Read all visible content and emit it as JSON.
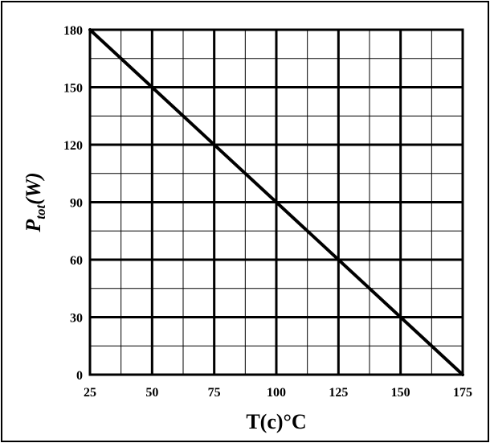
{
  "chart_data": {
    "type": "line",
    "title": "",
    "xlabel": "T(c)°C",
    "ylabel": {
      "main": "P",
      "sub": "tot",
      "unit": "(W)"
    },
    "xlim": [
      25,
      175
    ],
    "ylim": [
      0,
      180
    ],
    "x_ticks": [
      25,
      50,
      75,
      100,
      125,
      150,
      175
    ],
    "y_ticks": [
      0,
      30,
      60,
      90,
      120,
      150,
      180
    ],
    "x_minor_step": 12.5,
    "y_minor_step": 15,
    "grid": true,
    "series": [
      {
        "x": [
          25,
          175
        ],
        "y": [
          180,
          0
        ],
        "color": "#000000"
      }
    ]
  }
}
